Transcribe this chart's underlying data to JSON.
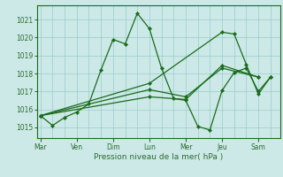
{
  "bg_color": "#cce9e8",
  "grid_color": "#99cccc",
  "line_color": "#1a6b1a",
  "marker_color": "#1a6b1a",
  "xlabel": "Pression niveau de la mer( hPa )",
  "xlabel_color": "#2d6b2d",
  "tick_color": "#2d6b2d",
  "ylim": [
    1014.4,
    1021.8
  ],
  "yticks": [
    1015,
    1016,
    1017,
    1018,
    1019,
    1020,
    1021
  ],
  "day_labels": [
    "Mar",
    "Ven",
    "Dim",
    "Lun",
    "Mer",
    "Jeu",
    "Sam"
  ],
  "day_positions": [
    0,
    3,
    6,
    9,
    12,
    15,
    18
  ],
  "xlim": [
    -0.3,
    19.8
  ],
  "series1_x": [
    0,
    1,
    2,
    3,
    4,
    5,
    6,
    7,
    8,
    9,
    10,
    11,
    12,
    13,
    14,
    15,
    16,
    17,
    18,
    19
  ],
  "series1_y": [
    1015.65,
    1015.1,
    1015.55,
    1015.85,
    1016.3,
    1018.2,
    1019.9,
    1019.65,
    1021.35,
    1020.5,
    1018.3,
    1016.6,
    1016.5,
    1015.05,
    1014.85,
    1017.05,
    1018.05,
    1018.3,
    1017.0,
    1017.8
  ],
  "series2_x": [
    0,
    9,
    12,
    15,
    18
  ],
  "series2_y": [
    1015.65,
    1016.7,
    1016.55,
    1018.45,
    1017.8
  ],
  "series3_x": [
    0,
    9,
    12,
    15,
    18
  ],
  "series3_y": [
    1015.65,
    1017.1,
    1016.7,
    1018.3,
    1017.8
  ],
  "series4_x": [
    0,
    9,
    15,
    16,
    17,
    18,
    19
  ],
  "series4_y": [
    1015.65,
    1017.45,
    1020.3,
    1020.2,
    1018.5,
    1016.85,
    1017.8
  ]
}
